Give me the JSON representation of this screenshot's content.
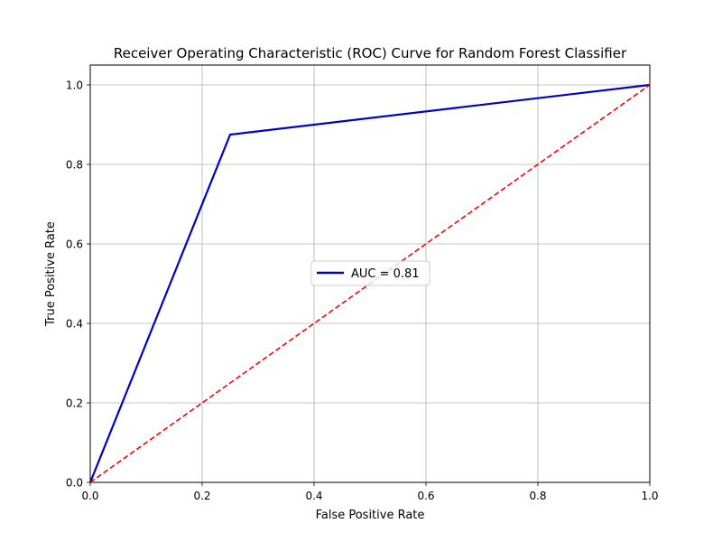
{
  "chart_data": {
    "type": "line",
    "title": "Receiver Operating Characteristic (ROC) Curve for Random Forest Classifier",
    "xlabel": "False Positive Rate",
    "ylabel": "True Positive Rate",
    "xlim": [
      0.0,
      1.0
    ],
    "ylim": [
      0.0,
      1.05
    ],
    "x_ticks": [
      "0.0",
      "0.2",
      "0.4",
      "0.6",
      "0.8",
      "1.0"
    ],
    "y_ticks": [
      "0.0",
      "0.2",
      "0.4",
      "0.6",
      "0.8",
      "1.0"
    ],
    "grid": true,
    "legend_position": "center",
    "series": [
      {
        "name": "AUC = 0.81",
        "color": "#0000cd",
        "line_style": "solid",
        "x": [
          0.0,
          0.25,
          1.0
        ],
        "y": [
          0.0,
          0.875,
          1.0
        ]
      },
      {
        "color": "#ff0000",
        "line_style": "dashed",
        "x": [
          0.0,
          1.0
        ],
        "y": [
          0.0,
          1.0
        ]
      }
    ]
  }
}
